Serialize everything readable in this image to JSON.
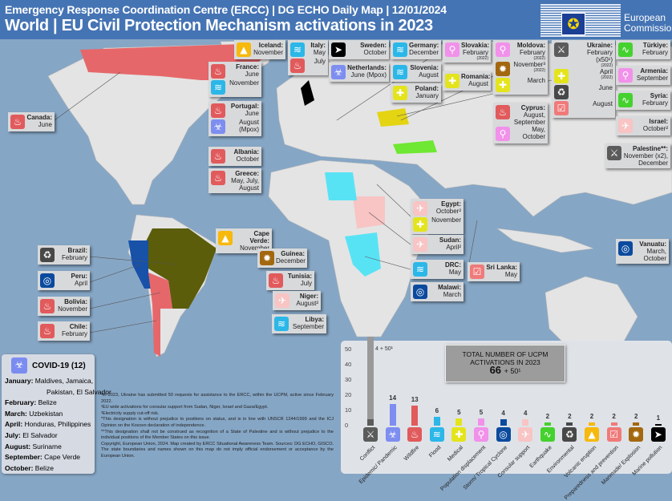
{
  "header": {
    "subtitle": "Emergency Response Coordination Centre (ERCC) | DG ECHO Daily Map | 12/01/2024",
    "title": "World | EU Civil Protection Mechanism activations in 2023",
    "logo_text": "European Commission"
  },
  "hazard_colors": {
    "wildfire": "#e15a5c",
    "flood": "#2bb7e8",
    "epidemic": "#7d8df0",
    "volcano": "#f6b90c",
    "marine": "#000000",
    "displacement": "#f191ea",
    "medical": "#e4e41c",
    "explosion": "#a3680f",
    "conflict": "#5b5b5b",
    "environmental": "#484848",
    "preparedness": "#f07a7a",
    "earthquake": "#45d12e",
    "consular": "#f8c4c4",
    "storm": "#0b4a9e"
  },
  "hazard_icons": {
    "wildfire": "flame-icon",
    "flood": "flood-icon",
    "epidemic": "biohazard-icon",
    "volcano": "volcano-icon",
    "marine": "fish-icon",
    "displacement": "walking-person-icon",
    "medical": "medical-kit-icon",
    "explosion": "explosion-icon",
    "conflict": "conflict-icon",
    "environmental": "environment-hand-icon",
    "preparedness": "checklist-icon",
    "earthquake": "seismograph-icon",
    "consular": "airplane-icon",
    "storm": "cyclone-icon"
  },
  "callouts": [
    {
      "country": "Canada:",
      "entries": [
        {
          "type": "wildfire",
          "text": "June"
        }
      ]
    },
    {
      "country": "Iceland:",
      "entries": [
        {
          "type": "volcano",
          "text": "November"
        }
      ]
    },
    {
      "country": "Italy:",
      "entries": [
        {
          "type": "flood",
          "text": "May"
        },
        {
          "type": "wildfire",
          "text": "July"
        }
      ]
    },
    {
      "country": "Sweden:",
      "entries": [
        {
          "type": "marine",
          "text": "October"
        }
      ]
    },
    {
      "country": "Netherlands:",
      "entries": [
        {
          "type": "epidemic",
          "text": "June (Mpox)"
        }
      ]
    },
    {
      "country": "Germany:",
      "entries": [
        {
          "type": "flood",
          "text": "December"
        }
      ]
    },
    {
      "country": "Slovenia:",
      "entries": [
        {
          "type": "flood",
          "text": "August"
        }
      ]
    },
    {
      "country": "Poland:",
      "entries": [
        {
          "type": "medical",
          "text": "January"
        }
      ]
    },
    {
      "country": "Slovakia:",
      "entries": [
        {
          "type": "displacement",
          "text": "February",
          "note": "(2022)"
        }
      ]
    },
    {
      "country": "Romania:",
      "entries": [
        {
          "type": "medical",
          "text": "August"
        }
      ]
    },
    {
      "country": "France:",
      "entries": [
        {
          "type": "wildfire",
          "text": "June"
        },
        {
          "type": "flood",
          "text": "November"
        }
      ]
    },
    {
      "country": "Portugal:",
      "entries": [
        {
          "type": "wildfire",
          "text": "June"
        },
        {
          "type": "epidemic",
          "text": "August (Mpox)"
        }
      ]
    },
    {
      "country": "Albania:",
      "entries": [
        {
          "type": "wildfire",
          "text": "October"
        }
      ]
    },
    {
      "country": "Greece:",
      "entries": [
        {
          "type": "wildfire",
          "text": "May, July, August"
        }
      ]
    },
    {
      "country": "Moldova:",
      "entries": [
        {
          "type": "displacement",
          "text": "February",
          "note": "(2022)"
        },
        {
          "type": "explosion",
          "text": "November³",
          "note": "(2022)"
        },
        {
          "type": "medical",
          "text": "March"
        }
      ]
    },
    {
      "country": "Cyprus:",
      "entries": [
        {
          "type": "wildfire",
          "text": "August, September"
        },
        {
          "type": "displacement",
          "text": "May, October"
        }
      ]
    },
    {
      "country": "Ukraine:",
      "entries": [
        {
          "type": "conflict",
          "text": "February (x50¹)",
          "note": "(2022)"
        },
        {
          "type": "medical",
          "text": "April",
          "note": "(2022)"
        },
        {
          "type": "environmental",
          "text": "June"
        },
        {
          "type": "preparedness",
          "text": "August"
        }
      ]
    },
    {
      "country": "Türkiye:",
      "entries": [
        {
          "type": "earthquake",
          "text": "February"
        }
      ]
    },
    {
      "country": "Armenia:",
      "entries": [
        {
          "type": "displacement",
          "text": "September"
        }
      ]
    },
    {
      "country": "Syria:",
      "entries": [
        {
          "type": "earthquake",
          "text": "February"
        }
      ]
    },
    {
      "country": "Israel:",
      "entries": [
        {
          "type": "consular",
          "text": "October²"
        }
      ]
    },
    {
      "country": "Palestine**:",
      "entries": [
        {
          "type": "conflict",
          "text": "November (x2), December"
        }
      ]
    },
    {
      "country": "Vanuatu:",
      "entries": [
        {
          "type": "storm",
          "text": "March, October"
        }
      ]
    },
    {
      "country": "Brazil:",
      "entries": [
        {
          "type": "environmental",
          "text": "February"
        }
      ]
    },
    {
      "country": "Peru:",
      "entries": [
        {
          "type": "storm",
          "text": "April"
        }
      ]
    },
    {
      "country": "Bolivia:",
      "entries": [
        {
          "type": "wildfire",
          "text": "November"
        }
      ]
    },
    {
      "country": "Chile:",
      "entries": [
        {
          "type": "wildfire",
          "text": "February"
        }
      ]
    },
    {
      "country": "Cape Verde:",
      "entries": [
        {
          "type": "volcano",
          "text": "November"
        }
      ]
    },
    {
      "country": "Guinea:",
      "entries": [
        {
          "type": "explosion",
          "text": "December"
        }
      ]
    },
    {
      "country": "Tunisia:",
      "entries": [
        {
          "type": "wildfire",
          "text": "July"
        }
      ]
    },
    {
      "country": "Niger:",
      "entries": [
        {
          "type": "consular",
          "text": "August²"
        }
      ]
    },
    {
      "country": "Libya:",
      "entries": [
        {
          "type": "flood",
          "text": "September"
        }
      ]
    },
    {
      "country": "Egypt:",
      "entries": [
        {
          "type": "consular",
          "text": "October²"
        },
        {
          "type": "medical",
          "text": "November"
        }
      ]
    },
    {
      "country": "Sudan:",
      "entries": [
        {
          "type": "consular",
          "text": "April²"
        }
      ]
    },
    {
      "country": "DRC:",
      "entries": [
        {
          "type": "flood",
          "text": "May"
        }
      ]
    },
    {
      "country": "Malawi:",
      "entries": [
        {
          "type": "storm",
          "text": "March"
        }
      ]
    },
    {
      "country": "Sri Lanka:",
      "entries": [
        {
          "type": "preparedness",
          "text": "May"
        }
      ]
    }
  ],
  "covid": {
    "title": "COVID-19 (12)",
    "rows": [
      {
        "month": "January:",
        "text": "Maldives, Jamaica,"
      },
      {
        "month": "",
        "text": "Pakistan, El Salvador"
      },
      {
        "month": "February:",
        "text": "Belize"
      },
      {
        "month": "March:",
        "text": "Uzbekistan"
      },
      {
        "month": "April:",
        "text": "Honduras, Philippines"
      },
      {
        "month": "July:",
        "text": "El Salvador"
      },
      {
        "month": "August:",
        "text": "Suriname"
      },
      {
        "month": "September:",
        "text": "Cape Verde"
      },
      {
        "month": "October:",
        "text": "Belize"
      }
    ]
  },
  "footnotes": [
    "¹In 2023, Ukraine has submitted 50 requests for assistance to the ERCC, within the UCPM, active since February 2022.",
    "²EU wide activations for consular support from Sudan, Niger, Israel and Gaza/Egypt.",
    "³Electricity supply cut-off risk.",
    "*This designation is without prejudice to positions on status, and is in line with UNSCR 1244/1999 and the ICJ Opinion on the Kosovo declaration of independence.",
    "**This designation shall not be construed as recognition of a State of Palestine and is without prejudice to the individual positions of the Member States on this issue.",
    "Copyright, European Union, 2024. Map created by ERCC Situational Awareness Team. Sources: DG ECHO, GISCO. The state boundaries and names shown on this map do not imply official endorsement or acceptance by the European Union."
  ],
  "total": {
    "line1": "TOTAL NUMBER OF UCPM",
    "line2": "ACTIVATIONS IN 2023",
    "value": "66",
    "extra": "+ 50¹"
  },
  "chart_data": {
    "type": "bar",
    "categories": [
      "Conflict",
      "Epidemic/ Pandemic",
      "Wildfire",
      "Flood",
      "Medical",
      "Population displacement",
      "Storm/ Tropical Cyclone",
      "Consular support",
      "Earthquake",
      "Environmental",
      "Volcanic eruption",
      "Preparedness and prevention",
      "Manmade/ Explosion",
      "Marine pollution"
    ],
    "hazards": [
      "conflict",
      "epidemic",
      "wildfire",
      "flood",
      "medical",
      "displacement",
      "storm",
      "consular",
      "earthquake",
      "environmental",
      "volcano",
      "preparedness",
      "explosion",
      "marine"
    ],
    "values": [
      4,
      14,
      13,
      6,
      5,
      5,
      4,
      4,
      2,
      2,
      2,
      2,
      2,
      1
    ],
    "data_labels": [
      "4 + 50¹",
      "14",
      "13",
      "6",
      "5",
      "5",
      "4",
      "4",
      "2",
      "2",
      "2",
      "2",
      "2",
      "1"
    ],
    "conflict_ukraine_extra": 50,
    "yticks": [
      "0",
      "10",
      "20",
      "30",
      "40",
      "50"
    ],
    "ylim": [
      0,
      50
    ],
    "grid": false
  }
}
